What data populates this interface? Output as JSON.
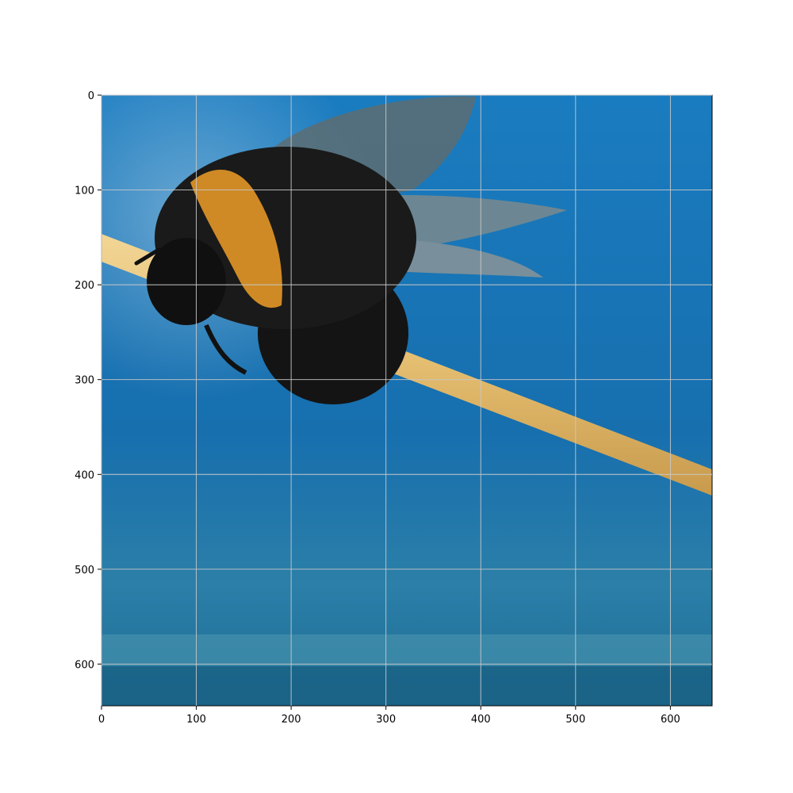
{
  "figure": {
    "type": "image-with-axes",
    "subject": "bumblebee-on-wooden-stick",
    "background_color": "#ffffff",
    "plot_background": "#1a78b5",
    "grid": true,
    "grid_color": "#c8c8c8"
  },
  "chart_data": {
    "type": "image",
    "x_axis": {
      "ticks": [
        0,
        100,
        200,
        300,
        400,
        500,
        600
      ],
      "range": [
        0,
        644
      ]
    },
    "y_axis": {
      "ticks": [
        0,
        100,
        200,
        300,
        400,
        500,
        600
      ],
      "range": [
        0,
        644
      ],
      "inverted": true
    },
    "grid": true
  },
  "colors": {
    "water_blue": "#1676b4",
    "water_dark": "#0f5f94",
    "bee_black": "#141414",
    "bee_orange": "#d08a22",
    "stick": "#e6c07a",
    "wing": "#6f7f84"
  }
}
